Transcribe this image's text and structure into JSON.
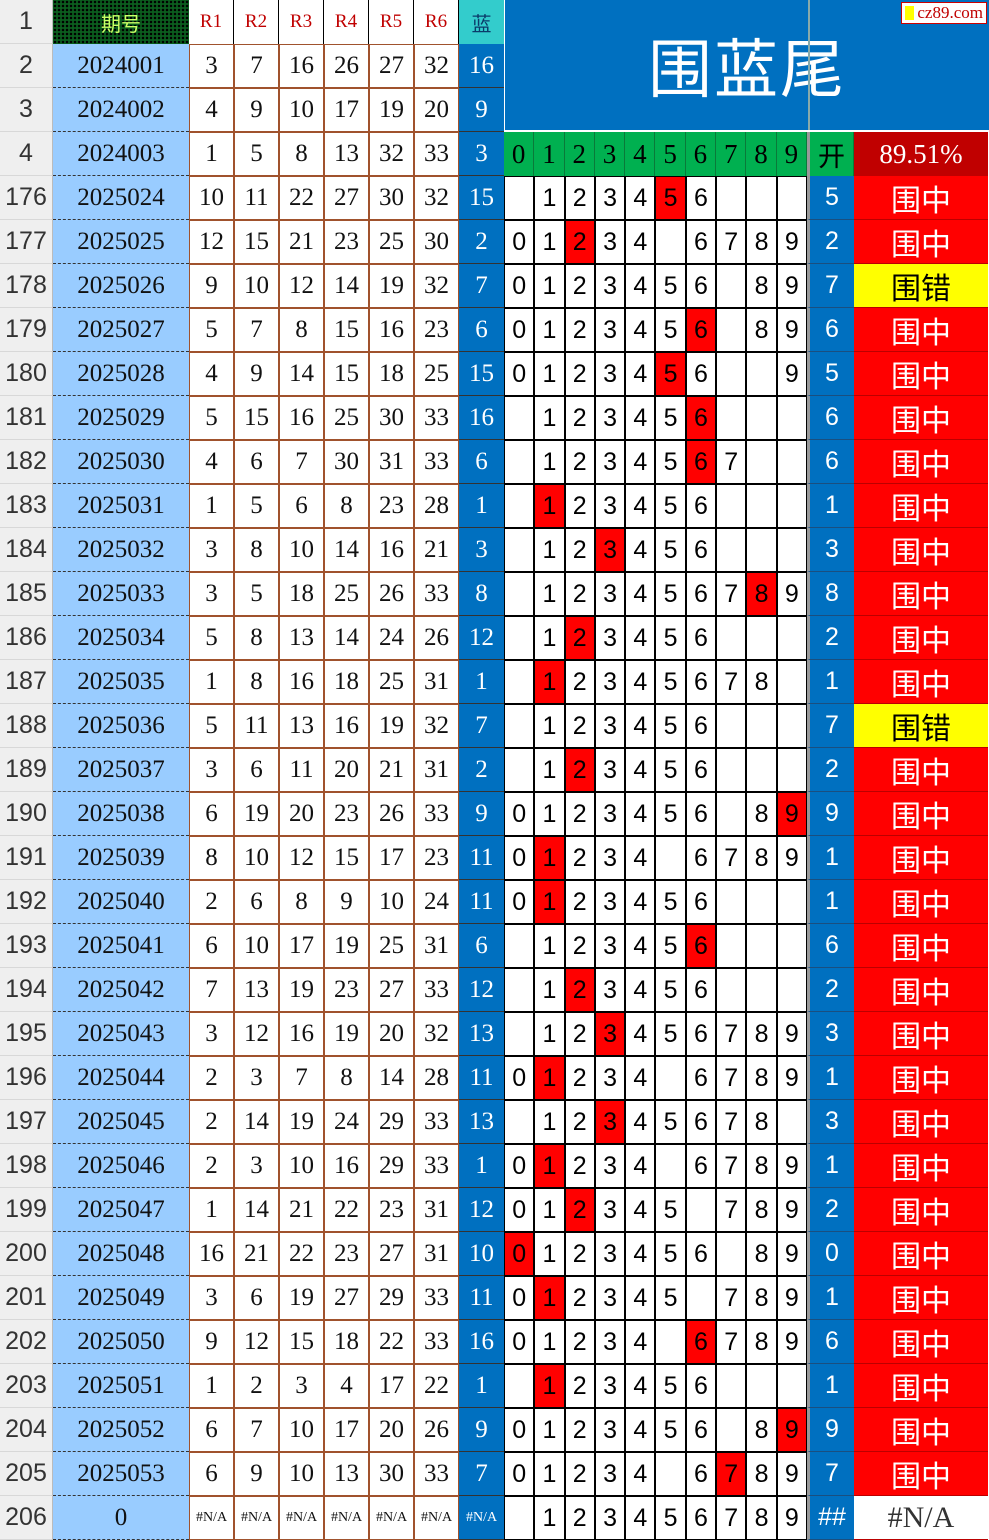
{
  "header": {
    "issue_label": "期号",
    "red_labels": [
      "R1",
      "R2",
      "R3",
      "R4",
      "R5",
      "R6"
    ],
    "blue_label": "蓝",
    "title": "围蓝尾",
    "logo": "cz89.com",
    "digits": [
      "0",
      "1",
      "2",
      "3",
      "4",
      "5",
      "6",
      "7",
      "8",
      "9"
    ],
    "open_label": "开",
    "hit_rate": "89.51%"
  },
  "colors": {
    "hit": "#FF0000",
    "miss": "#FFFF00",
    "blue": "#0070C0",
    "green": "#00B050",
    "issue_bg": "#99CCFF"
  },
  "top_rows": [
    {
      "row": "2",
      "issue": "2024001",
      "reds": [
        "3",
        "7",
        "16",
        "26",
        "27",
        "32"
      ],
      "blue": "16"
    },
    {
      "row": "3",
      "issue": "2024002",
      "reds": [
        "4",
        "9",
        "10",
        "17",
        "19",
        "20"
      ],
      "blue": "9"
    },
    {
      "row": "4",
      "issue": "2024003",
      "reds": [
        "1",
        "5",
        "8",
        "13",
        "32",
        "33"
      ],
      "blue": "3"
    }
  ],
  "rows": [
    {
      "row": "176",
      "issue": "2025024",
      "reds": [
        "10",
        "11",
        "22",
        "27",
        "30",
        "32"
      ],
      "blue": "15",
      "digits": "123456",
      "open": "5",
      "result": "围中"
    },
    {
      "row": "177",
      "issue": "2025025",
      "reds": [
        "12",
        "15",
        "21",
        "23",
        "25",
        "30"
      ],
      "blue": "2",
      "digits": "012346789",
      "open": "2",
      "result": "围中"
    },
    {
      "row": "178",
      "issue": "2025026",
      "reds": [
        "9",
        "10",
        "12",
        "14",
        "19",
        "32"
      ],
      "blue": "7",
      "digits": "012345689",
      "open": "7",
      "result": "围错"
    },
    {
      "row": "179",
      "issue": "2025027",
      "reds": [
        "5",
        "7",
        "8",
        "15",
        "16",
        "23"
      ],
      "blue": "6",
      "digits": "012345689",
      "open": "6",
      "result": "围中"
    },
    {
      "row": "180",
      "issue": "2025028",
      "reds": [
        "4",
        "9",
        "14",
        "15",
        "18",
        "25"
      ],
      "blue": "15",
      "digits": "01234569",
      "open": "5",
      "result": "围中"
    },
    {
      "row": "181",
      "issue": "2025029",
      "reds": [
        "5",
        "15",
        "16",
        "25",
        "30",
        "33"
      ],
      "blue": "16",
      "digits": "123456",
      "open": "6",
      "result": "围中"
    },
    {
      "row": "182",
      "issue": "2025030",
      "reds": [
        "4",
        "6",
        "7",
        "30",
        "31",
        "33"
      ],
      "blue": "6",
      "digits": "1234567",
      "open": "6",
      "result": "围中"
    },
    {
      "row": "183",
      "issue": "2025031",
      "reds": [
        "1",
        "5",
        "6",
        "8",
        "23",
        "28"
      ],
      "blue": "1",
      "digits": "123456",
      "open": "1",
      "result": "围中"
    },
    {
      "row": "184",
      "issue": "2025032",
      "reds": [
        "3",
        "8",
        "10",
        "14",
        "16",
        "21"
      ],
      "blue": "3",
      "digits": "123456",
      "open": "3",
      "result": "围中"
    },
    {
      "row": "185",
      "issue": "2025033",
      "reds": [
        "3",
        "5",
        "18",
        "25",
        "26",
        "33"
      ],
      "blue": "8",
      "digits": "123456789",
      "open": "8",
      "result": "围中"
    },
    {
      "row": "186",
      "issue": "2025034",
      "reds": [
        "5",
        "8",
        "13",
        "14",
        "24",
        "26"
      ],
      "blue": "12",
      "digits": "123456",
      "open": "2",
      "result": "围中"
    },
    {
      "row": "187",
      "issue": "2025035",
      "reds": [
        "1",
        "8",
        "16",
        "18",
        "25",
        "31"
      ],
      "blue": "1",
      "digits": "12345678",
      "open": "1",
      "result": "围中"
    },
    {
      "row": "188",
      "issue": "2025036",
      "reds": [
        "5",
        "11",
        "13",
        "16",
        "19",
        "32"
      ],
      "blue": "7",
      "digits": "123456",
      "open": "7",
      "result": "围错"
    },
    {
      "row": "189",
      "issue": "2025037",
      "reds": [
        "3",
        "6",
        "11",
        "20",
        "21",
        "31"
      ],
      "blue": "2",
      "digits": "123456",
      "open": "2",
      "result": "围中"
    },
    {
      "row": "190",
      "issue": "2025038",
      "reds": [
        "6",
        "19",
        "20",
        "23",
        "26",
        "33"
      ],
      "blue": "9",
      "digits": "012345689",
      "open": "9",
      "result": "围中"
    },
    {
      "row": "191",
      "issue": "2025039",
      "reds": [
        "8",
        "10",
        "12",
        "15",
        "17",
        "23"
      ],
      "blue": "11",
      "digits": "012346789",
      "open": "1",
      "result": "围中"
    },
    {
      "row": "192",
      "issue": "2025040",
      "reds": [
        "2",
        "6",
        "8",
        "9",
        "10",
        "24"
      ],
      "blue": "11",
      "digits": "0123456",
      "open": "1",
      "result": "围中"
    },
    {
      "row": "193",
      "issue": "2025041",
      "reds": [
        "6",
        "10",
        "17",
        "19",
        "25",
        "31"
      ],
      "blue": "6",
      "digits": "123456",
      "open": "6",
      "result": "围中"
    },
    {
      "row": "194",
      "issue": "2025042",
      "reds": [
        "7",
        "13",
        "19",
        "23",
        "27",
        "33"
      ],
      "blue": "12",
      "digits": "123456",
      "open": "2",
      "result": "围中"
    },
    {
      "row": "195",
      "issue": "2025043",
      "reds": [
        "3",
        "12",
        "16",
        "19",
        "20",
        "32"
      ],
      "blue": "13",
      "digits": "123456789",
      "open": "3",
      "result": "围中"
    },
    {
      "row": "196",
      "issue": "2025044",
      "reds": [
        "2",
        "3",
        "7",
        "8",
        "14",
        "28"
      ],
      "blue": "11",
      "digits": "012346789",
      "open": "1",
      "result": "围中"
    },
    {
      "row": "197",
      "issue": "2025045",
      "reds": [
        "2",
        "14",
        "19",
        "24",
        "29",
        "33"
      ],
      "blue": "13",
      "digits": "12345678",
      "open": "3",
      "result": "围中"
    },
    {
      "row": "198",
      "issue": "2025046",
      "reds": [
        "2",
        "3",
        "10",
        "16",
        "29",
        "33"
      ],
      "blue": "1",
      "digits": "012346789",
      "open": "1",
      "result": "围中"
    },
    {
      "row": "199",
      "issue": "2025047",
      "reds": [
        "1",
        "14",
        "21",
        "22",
        "23",
        "31"
      ],
      "blue": "12",
      "digits": "012345789",
      "open": "2",
      "result": "围中"
    },
    {
      "row": "200",
      "issue": "2025048",
      "reds": [
        "16",
        "21",
        "22",
        "23",
        "27",
        "31"
      ],
      "blue": "10",
      "digits": "012345689",
      "open": "0",
      "result": "围中"
    },
    {
      "row": "201",
      "issue": "2025049",
      "reds": [
        "3",
        "6",
        "19",
        "27",
        "29",
        "33"
      ],
      "blue": "11",
      "digits": "012345789",
      "open": "1",
      "result": "围中"
    },
    {
      "row": "202",
      "issue": "2025050",
      "reds": [
        "9",
        "12",
        "15",
        "18",
        "22",
        "33"
      ],
      "blue": "16",
      "digits": "012346789",
      "open": "6",
      "result": "围中"
    },
    {
      "row": "203",
      "issue": "2025051",
      "reds": [
        "1",
        "2",
        "3",
        "4",
        "17",
        "22"
      ],
      "blue": "1",
      "digits": "123456",
      "open": "1",
      "result": "围中"
    },
    {
      "row": "204",
      "issue": "2025052",
      "reds": [
        "6",
        "7",
        "10",
        "17",
        "20",
        "26"
      ],
      "blue": "9",
      "digits": "012345689",
      "open": "9",
      "result": "围中"
    },
    {
      "row": "205",
      "issue": "2025053",
      "reds": [
        "6",
        "9",
        "10",
        "13",
        "30",
        "33"
      ],
      "blue": "7",
      "digits": "012346789",
      "open": "7",
      "result": "围中"
    },
    {
      "row": "206",
      "issue": "0",
      "reds": [
        "#N/A",
        "#N/A",
        "#N/A",
        "#N/A",
        "#N/A",
        "#N/A"
      ],
      "blue": "#N/A",
      "digits": "123456789",
      "open": "##",
      "result": "#N/A"
    }
  ]
}
